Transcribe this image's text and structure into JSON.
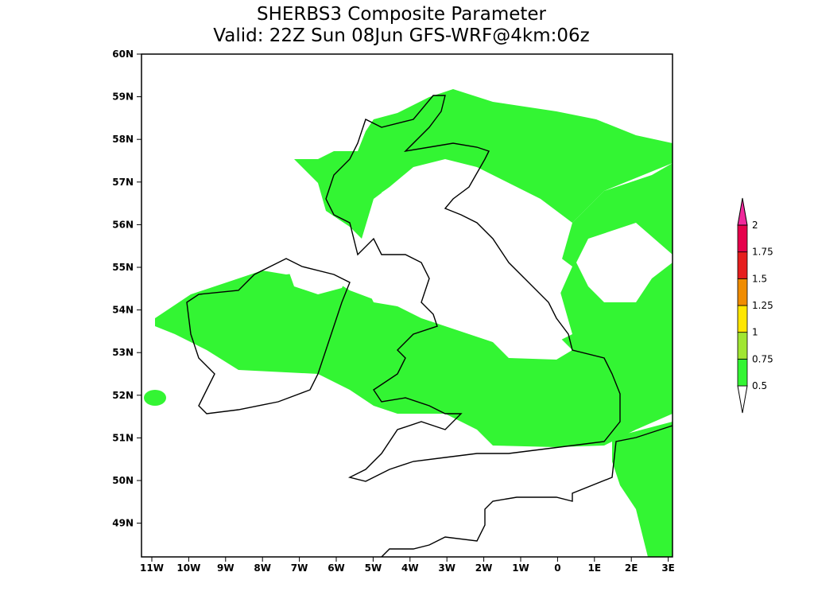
{
  "title": {
    "line1": "SHERBS3 Composite Parameter",
    "line2": "Valid: 22Z Sun 08Jun GFS-WRF@4km:06z"
  },
  "map": {
    "lat_labels": [
      "60N",
      "59N",
      "58N",
      "57N",
      "56N",
      "55N",
      "54N",
      "53N",
      "52N",
      "51N",
      "50N",
      "49N"
    ],
    "lon_labels": [
      "11W",
      "10W",
      "9W",
      "8W",
      "7W",
      "6W",
      "5W",
      "4W",
      "3W",
      "2W",
      "1W",
      "0",
      "1E",
      "2E",
      "3E"
    ]
  },
  "colorbar": {
    "levels": [
      0.5,
      0.75,
      1,
      1.25,
      1.5,
      1.75,
      2
    ],
    "colors": [
      "#ffffff",
      "#33f533",
      "#a0e632",
      "#ffe600",
      "#f08c00",
      "#e61e1e",
      "#e6004b",
      "#f0289b"
    ]
  }
}
